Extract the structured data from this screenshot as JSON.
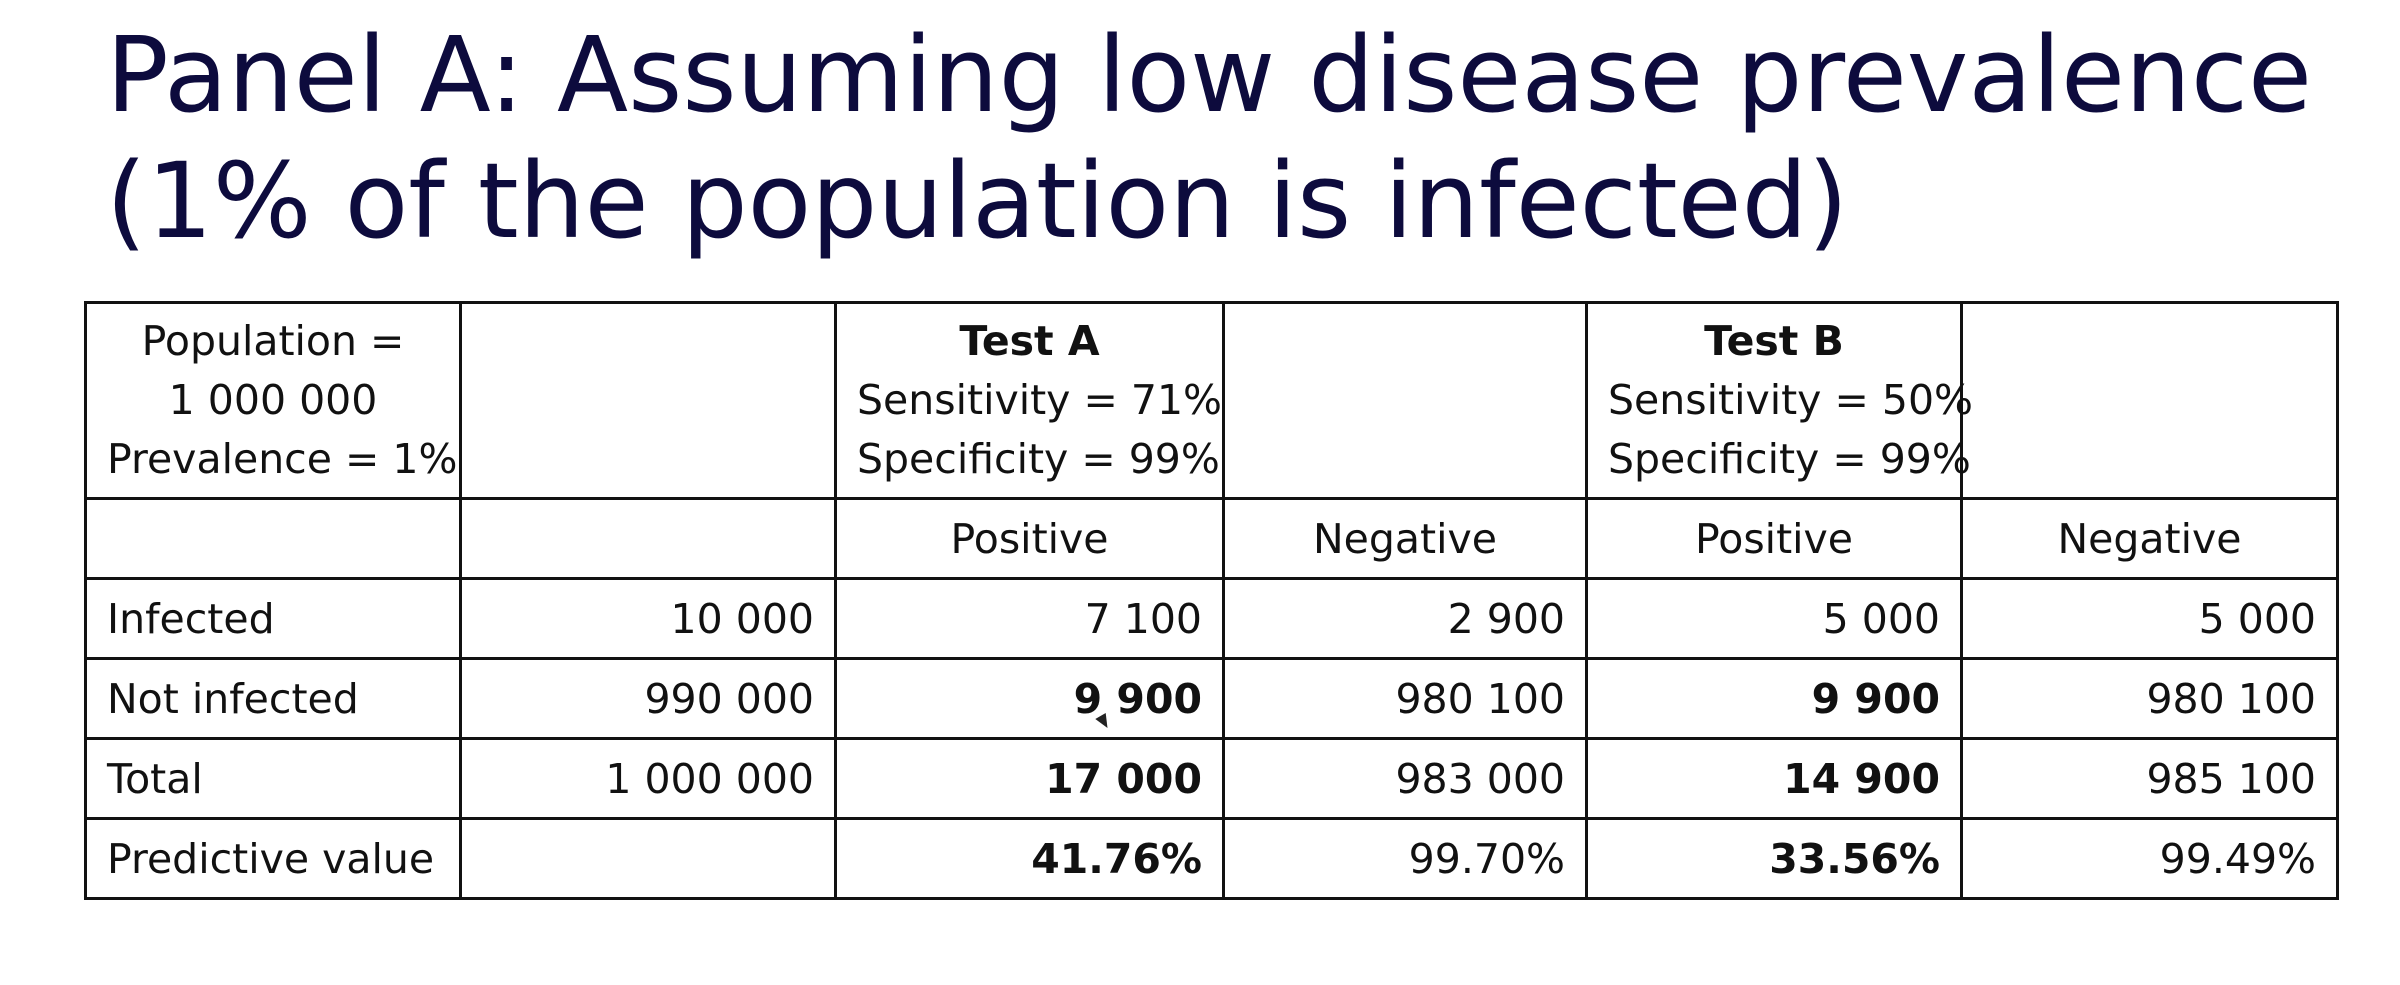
{
  "title": {
    "line1": "Panel A: Assuming low disease prevalence",
    "line2": "(1% of the population is infected)"
  },
  "table": {
    "header": {
      "population_cell": [
        "Population =",
        "1 000 000",
        "Prevalence = 1%"
      ],
      "test_a": {
        "name": "Test A",
        "sensitivity": "Sensitivity = 71%",
        "specificity": "Specificity = 99%"
      },
      "test_b": {
        "name": "Test B",
        "sensitivity": "Sensitivity = 50%",
        "specificity": "Specificity = 99%"
      }
    },
    "subheader": {
      "a_positive": "Positive",
      "a_negative": "Negative",
      "b_positive": "Positive",
      "b_negative": "Negative"
    },
    "rows": [
      {
        "label": "Infected",
        "total": "10 000",
        "a_pos": "7 100",
        "a_neg": "2 900",
        "b_pos": "5 000",
        "b_neg": "5 000"
      },
      {
        "label": "Not infected",
        "total": "990 000",
        "a_pos": "9 900",
        "a_neg": "980 100",
        "b_pos": "9 900",
        "b_neg": "980 100"
      },
      {
        "label": "Total",
        "total": "1 000 000",
        "a_pos": "17 000",
        "a_neg": "983 000",
        "b_pos": "14 900",
        "b_neg": "985 100"
      },
      {
        "label": "Predictive value",
        "total": "",
        "a_pos": "41.76%",
        "a_neg": "99.70%",
        "b_pos": "33.56%",
        "b_neg": "99.49%"
      }
    ]
  }
}
